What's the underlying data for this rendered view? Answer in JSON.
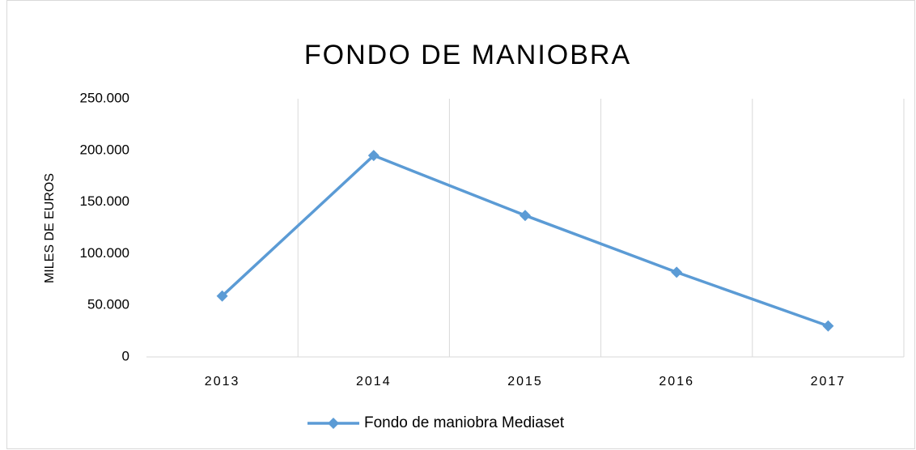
{
  "chart_data": {
    "type": "line",
    "title": "FONDO DE MANIOBRA",
    "y_label": "MILES DE EUROS",
    "categories": [
      "2013",
      "2014",
      "2015",
      "2016",
      "2017"
    ],
    "series": [
      {
        "name": "Fondo de maniobra Mediaset",
        "color": "#5b9bd5",
        "values": [
          59000,
          195000,
          137000,
          82000,
          30000
        ]
      }
    ],
    "ylim": [
      0,
      250000
    ],
    "yticks": [
      0,
      {
        "value": 50000,
        "label": "50.000"
      },
      {
        "value": 100000,
        "label": "100.000"
      },
      {
        "value": 150000,
        "label": "150.000"
      },
      {
        "value": 200000,
        "label": "200.000"
      },
      {
        "value": 250000,
        "label": "250.000"
      }
    ],
    "grid": true,
    "legend": "bottom"
  }
}
